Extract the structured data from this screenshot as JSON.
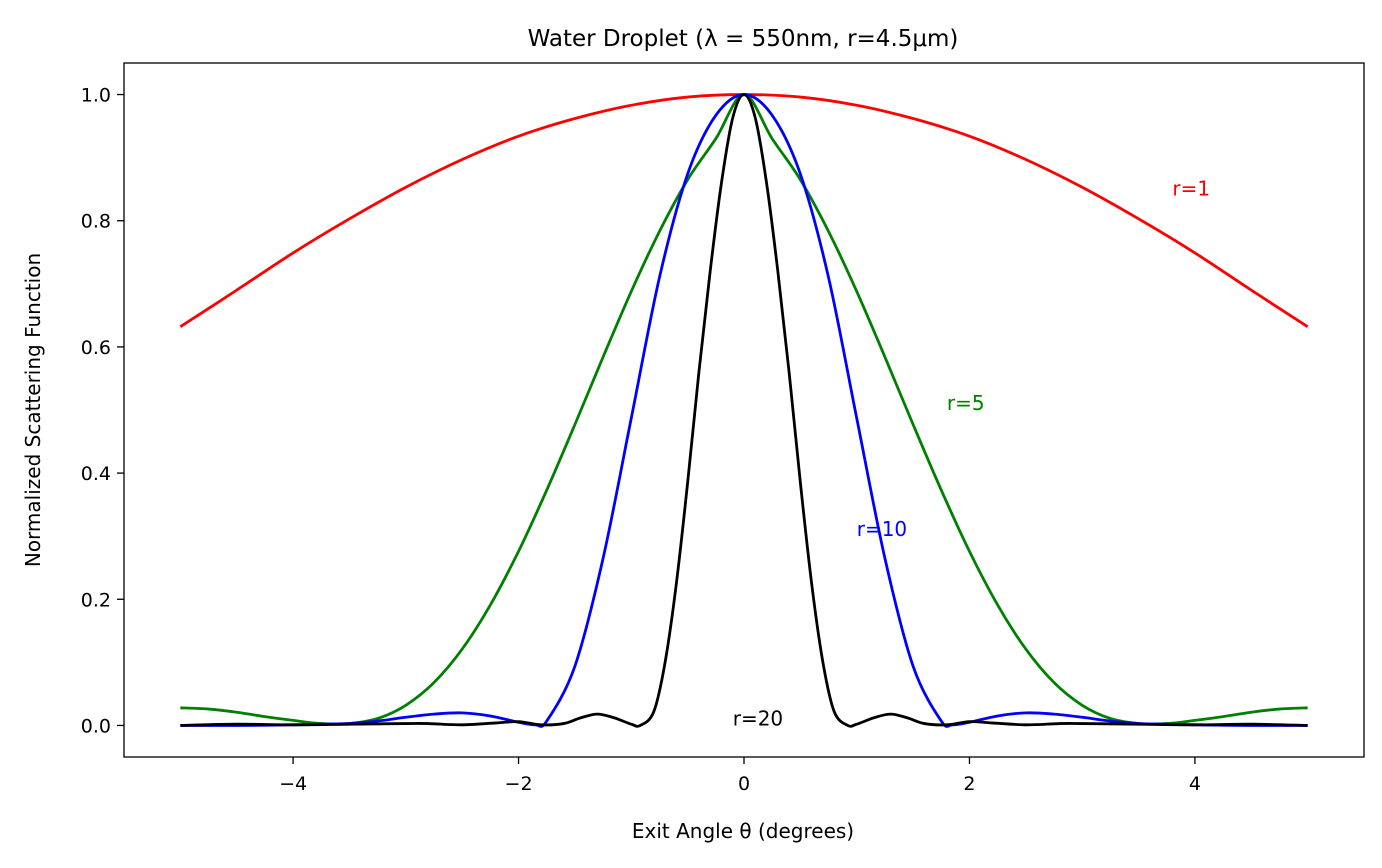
{
  "chart_data": {
    "type": "line",
    "title": "Water Droplet (λ = 550nm, r=4.5μm)",
    "xlabel": "Exit Angle θ (degrees)",
    "ylabel": "Normalized Scattering Function",
    "xlim": [
      -5.5,
      5.5
    ],
    "ylim": [
      -0.05,
      1.05
    ],
    "x_ticks": [
      -4,
      -2,
      0,
      2,
      4
    ],
    "x_tick_labels": [
      "−4",
      "−2",
      "0",
      "2",
      "4"
    ],
    "y_ticks": [
      0.0,
      0.2,
      0.4,
      0.6,
      0.8,
      1.0
    ],
    "y_tick_labels": [
      "0.0",
      "0.2",
      "0.4",
      "0.6",
      "0.8",
      "1.0"
    ],
    "grid": false,
    "legend": "none",
    "series": [
      {
        "label": "r=1",
        "color": "#ff0000",
        "label_x": 3.8,
        "label_y": 0.84,
        "x": [
          -5,
          -4.5,
          -4,
          -3.5,
          -3,
          -2.5,
          -2,
          -1.5,
          -1,
          -0.5,
          0,
          0.5,
          1,
          1.5,
          2,
          2.5,
          3,
          3.5,
          4,
          4.5,
          5
        ],
        "y": [
          0.632,
          0.69,
          0.749,
          0.803,
          0.853,
          0.897,
          0.934,
          0.962,
          0.983,
          0.996,
          1.0,
          0.996,
          0.983,
          0.962,
          0.934,
          0.897,
          0.853,
          0.803,
          0.749,
          0.69,
          0.632
        ]
      },
      {
        "label": "r=5",
        "color": "#008000",
        "label_x": 1.8,
        "label_y": 0.5,
        "x": [
          -5,
          -4.75,
          -4.5,
          -4.25,
          -4,
          -3.75,
          -3.5,
          -3.25,
          -3,
          -2.75,
          -2.5,
          -2.25,
          -2,
          -1.75,
          -1.5,
          -1.25,
          -1,
          -0.75,
          -0.5,
          -0.25,
          0,
          0.25,
          0.5,
          0.75,
          1,
          1.25,
          1.5,
          1.75,
          2,
          2.25,
          2.5,
          2.75,
          3,
          3.25,
          3.5,
          3.75,
          4,
          4.25,
          4.5,
          4.75,
          5
        ],
        "y": [
          0.028,
          0.026,
          0.021,
          0.014,
          0.008,
          0.003,
          0.003,
          0.011,
          0.032,
          0.068,
          0.121,
          0.191,
          0.276,
          0.373,
          0.477,
          0.584,
          0.688,
          0.783,
          0.865,
          0.93,
          1.0,
          0.93,
          0.865,
          0.783,
          0.688,
          0.584,
          0.477,
          0.373,
          0.276,
          0.191,
          0.121,
          0.068,
          0.032,
          0.011,
          0.003,
          0.003,
          0.008,
          0.014,
          0.021,
          0.026,
          0.028
        ]
      },
      {
        "label": "r=10",
        "color": "#0000ff",
        "label_x": 1.0,
        "label_y": 0.3,
        "x": [
          -5,
          -4.5,
          -4,
          -3.75,
          -3.5,
          -3.25,
          -3,
          -2.75,
          -2.5,
          -2.25,
          -2,
          -1.85,
          -1.75,
          -1.5,
          -1.25,
          -1,
          -0.75,
          -0.5,
          -0.25,
          0,
          0.25,
          0.5,
          0.75,
          1,
          1.25,
          1.5,
          1.75,
          1.85,
          2,
          2.25,
          2.5,
          2.75,
          3,
          3.25,
          3.5,
          3.75,
          4,
          4.5,
          5
        ],
        "y": [
          0.0,
          0.0,
          0.001,
          0.002,
          0.003,
          0.007,
          0.013,
          0.018,
          0.02,
          0.015,
          0.005,
          0.001,
          0.007,
          0.094,
          0.265,
          0.487,
          0.71,
          0.874,
          0.967,
          1.0,
          0.967,
          0.874,
          0.71,
          0.487,
          0.265,
          0.094,
          0.007,
          0.001,
          0.005,
          0.015,
          0.02,
          0.018,
          0.013,
          0.007,
          0.003,
          0.002,
          0.001,
          0.0,
          0.0
        ]
      },
      {
        "label": "r=20",
        "color": "#000000",
        "label_x": -0.1,
        "label_y": 0.0,
        "x": [
          -5,
          -4.5,
          -4,
          -3.5,
          -3,
          -2.8,
          -2.5,
          -2.2,
          -2.0,
          -1.8,
          -1.6,
          -1.45,
          -1.3,
          -1.15,
          -1.0,
          -0.92,
          -0.8,
          -0.7,
          -0.6,
          -0.5,
          -0.4,
          -0.3,
          -0.2,
          -0.1,
          0,
          0.1,
          0.2,
          0.3,
          0.4,
          0.5,
          0.6,
          0.7,
          0.8,
          0.92,
          1.0,
          1.15,
          1.3,
          1.45,
          1.6,
          1.8,
          2.0,
          2.2,
          2.5,
          2.8,
          3,
          3.5,
          4,
          4.5,
          5
        ],
        "y": [
          0.0,
          0.002,
          0.001,
          0.002,
          0.003,
          0.003,
          0.001,
          0.004,
          0.006,
          0.001,
          0.003,
          0.012,
          0.018,
          0.012,
          0.002,
          0.0,
          0.022,
          0.1,
          0.225,
          0.385,
          0.56,
          0.72,
          0.86,
          0.963,
          1.0,
          0.963,
          0.86,
          0.72,
          0.56,
          0.385,
          0.225,
          0.1,
          0.022,
          0.0,
          0.002,
          0.012,
          0.018,
          0.012,
          0.003,
          0.001,
          0.006,
          0.004,
          0.001,
          0.003,
          0.003,
          0.002,
          0.001,
          0.002,
          0.0
        ]
      }
    ]
  }
}
